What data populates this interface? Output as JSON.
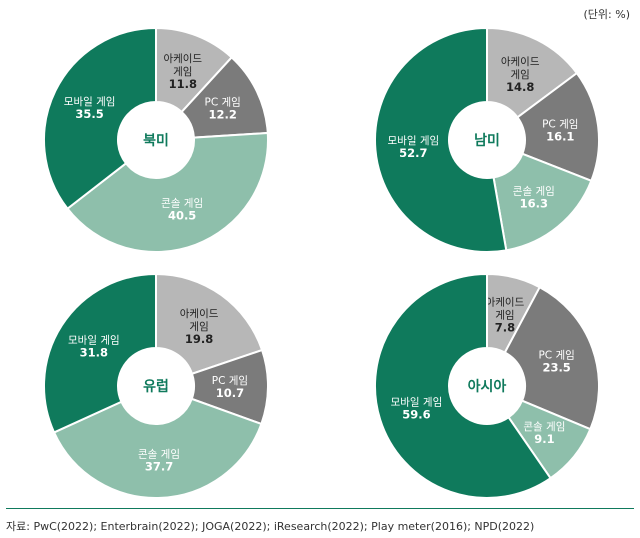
{
  "unit": "(단위: %)",
  "source": "자료: PwC(2022); Enterbrain(2022); JOGA(2022); iResearch(2022); Play meter(2016); NPD(2022)",
  "colors": {
    "arcade": "#b7b7b7",
    "pc": "#7b7b7b",
    "console": "#8ebfab",
    "mobile": "#0f7a5c"
  },
  "chart_data": [
    {
      "type": "pie",
      "center_label": "북미",
      "slices": [
        {
          "name": "아케이드 게임",
          "value": 11.8,
          "value_label": "11.8",
          "key": "arcade"
        },
        {
          "name": "PC 게임",
          "value": 12.2,
          "value_label": "12.2",
          "key": "pc"
        },
        {
          "name": "콘솔 게임",
          "value": 40.5,
          "value_label": "40.5",
          "key": "console"
        },
        {
          "name": "모바일 게임",
          "value": 35.5,
          "value_label": "35.5",
          "key": "mobile"
        }
      ]
    },
    {
      "type": "pie",
      "center_label": "남미",
      "slices": [
        {
          "name": "아케이드 게임",
          "value": 14.8,
          "value_label": "14.8",
          "key": "arcade"
        },
        {
          "name": "PC 게임",
          "value": 16.1,
          "value_label": "16.1",
          "key": "pc"
        },
        {
          "name": "콘솔 게임",
          "value": 16.3,
          "value_label": "16.3",
          "key": "console"
        },
        {
          "name": "모바일 게임",
          "value": 52.7,
          "value_label": "52.7",
          "key": "mobile"
        }
      ]
    },
    {
      "type": "pie",
      "center_label": "유럽",
      "slices": [
        {
          "name": "아케이드 게임",
          "value": 19.8,
          "value_label": "19.8",
          "key": "arcade"
        },
        {
          "name": "PC 게임",
          "value": 10.7,
          "value_label": "10.7",
          "key": "pc"
        },
        {
          "name": "콘솔 게임",
          "value": 37.7,
          "value_label": "37.7",
          "key": "console"
        },
        {
          "name": "모바일 게임",
          "value": 31.8,
          "value_label": "31.8",
          "key": "mobile"
        }
      ]
    },
    {
      "type": "pie",
      "center_label": "아시아",
      "slices": [
        {
          "name": "아케이드 게임",
          "value": 7.8,
          "value_label": "7.8",
          "key": "arcade"
        },
        {
          "name": "PC 게임",
          "value": 23.5,
          "value_label": "23.5",
          "key": "pc"
        },
        {
          "name": "콘솔 게임",
          "value": 9.1,
          "value_label": "9.1",
          "key": "console"
        },
        {
          "name": "모바일 게임",
          "value": 59.6,
          "value_label": "59.6",
          "key": "mobile"
        }
      ]
    }
  ]
}
